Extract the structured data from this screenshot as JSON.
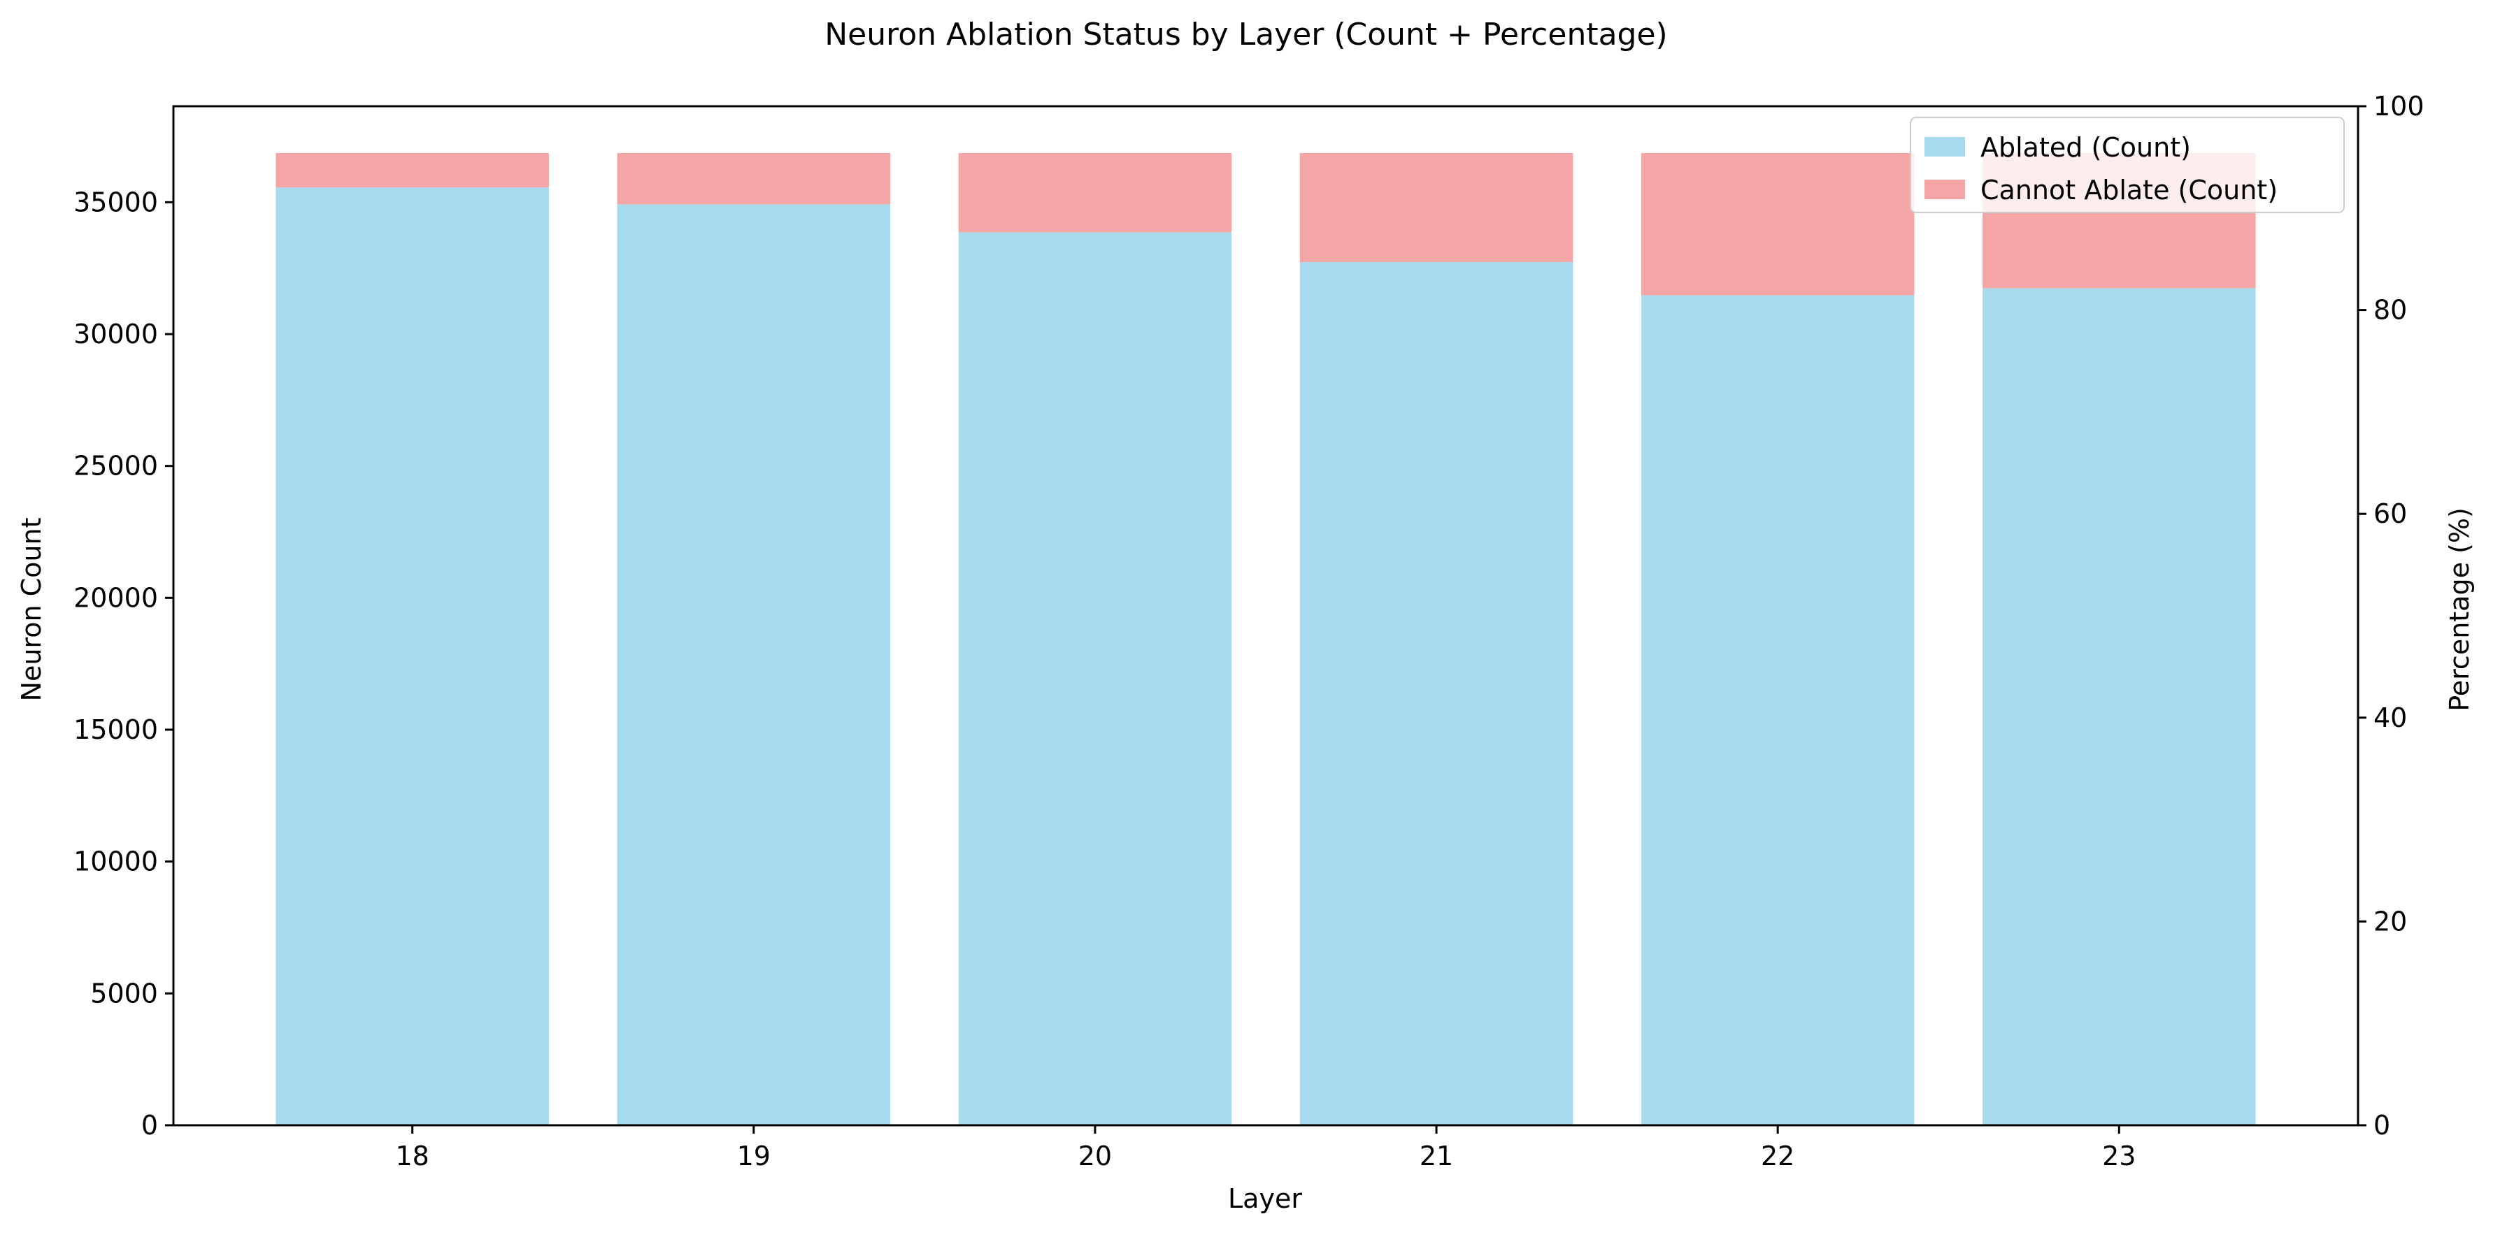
{
  "chart_data": {
    "type": "bar",
    "stacked": true,
    "title": "Neuron Ablation Status by Layer (Count + Percentage)",
    "xlabel": "Layer",
    "ylabel": "Neuron Count",
    "y2label": "Percentage (%)",
    "categories": [
      "18",
      "19",
      "20",
      "21",
      "22",
      "23"
    ],
    "series": [
      {
        "name": "Ablated (Count)",
        "color": "#a9dbee",
        "values": [
          35560,
          34920,
          33860,
          32730,
          31470,
          31740
        ]
      },
      {
        "name": "Cannot Ablate (Count)",
        "color": "#f4a6a6",
        "values": [
          1304,
          1944,
          3004,
          4134,
          5394,
          5124
        ]
      }
    ],
    "ylim": [
      0,
      38640
    ],
    "yticks": [
      0,
      5000,
      10000,
      15000,
      20000,
      25000,
      30000,
      35000
    ],
    "y2lim": [
      0,
      100
    ],
    "y2ticks": [
      0,
      20,
      40,
      60,
      80,
      100
    ],
    "legend_position": "top-right",
    "grid": false
  }
}
